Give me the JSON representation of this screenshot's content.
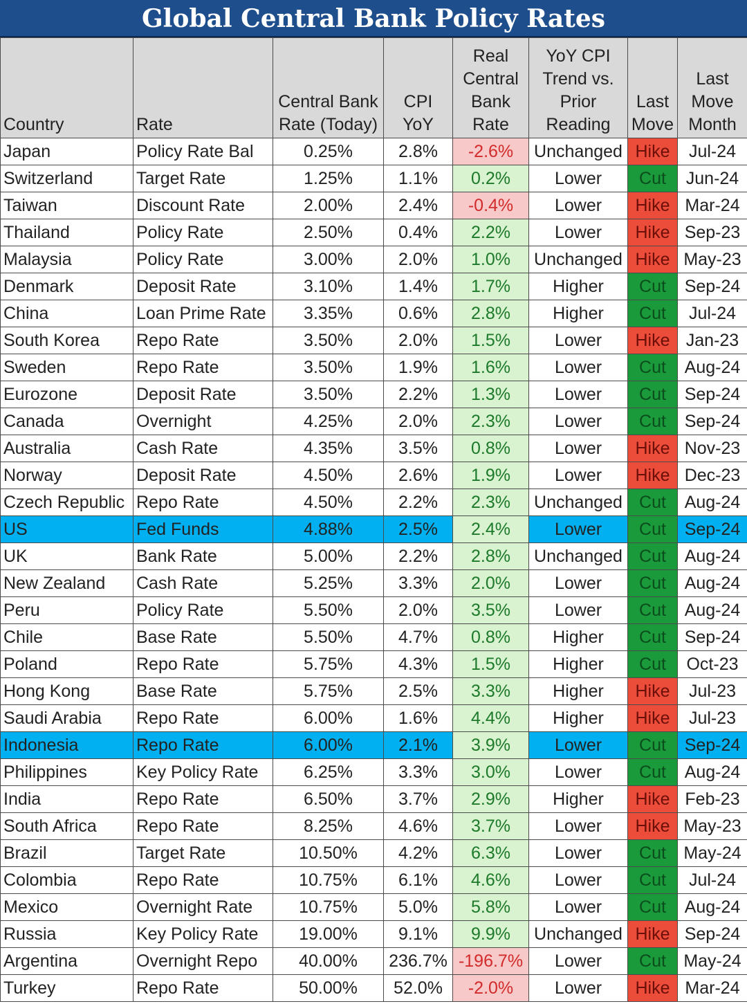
{
  "title": "Global Central Bank Policy Rates",
  "headers": {
    "country": "Country",
    "rate": "Rate",
    "cb_rate": "Central Bank Rate (Today)",
    "cpi": "CPI YoY",
    "real": "Real Central Bank Rate",
    "trend": "YoY CPI Trend vs. Prior Reading",
    "last_move": "Last Move",
    "last_move_month": "Last Move Month"
  },
  "colors": {
    "title_bg": "#1f4e8c",
    "header_bg": "#d9d9d9",
    "highlight_row": "#00b0f0",
    "positive_bg": "#d9f2d0",
    "positive_text": "#1c7a2a",
    "negative_bg": "#f8c9c9",
    "negative_text": "#d22b2b",
    "hike_bg": "#ec4d3a",
    "cut_bg": "#1a9a3a"
  },
  "rows": [
    {
      "country": "Japan",
      "rate": "Policy Rate Bal",
      "cb_rate": "0.25%",
      "cpi": "2.8%",
      "real": "-2.6%",
      "trend": "Unchanged",
      "last_move": "Hike",
      "month": "Jul-24",
      "highlight": false
    },
    {
      "country": "Switzerland",
      "rate": "Target Rate",
      "cb_rate": "1.25%",
      "cpi": "1.1%",
      "real": "0.2%",
      "trend": "Lower",
      "last_move": "Cut",
      "month": "Jun-24",
      "highlight": false
    },
    {
      "country": "Taiwan",
      "rate": "Discount Rate",
      "cb_rate": "2.00%",
      "cpi": "2.4%",
      "real": "-0.4%",
      "trend": "Lower",
      "last_move": "Hike",
      "month": "Mar-24",
      "highlight": false
    },
    {
      "country": "Thailand",
      "rate": "Policy Rate",
      "cb_rate": "2.50%",
      "cpi": "0.4%",
      "real": "2.2%",
      "trend": "Lower",
      "last_move": "Hike",
      "month": "Sep-23",
      "highlight": false
    },
    {
      "country": "Malaysia",
      "rate": "Policy Rate",
      "cb_rate": "3.00%",
      "cpi": "2.0%",
      "real": "1.0%",
      "trend": "Unchanged",
      "last_move": "Hike",
      "month": "May-23",
      "highlight": false
    },
    {
      "country": "Denmark",
      "rate": "Deposit Rate",
      "cb_rate": "3.10%",
      "cpi": "1.4%",
      "real": "1.7%",
      "trend": "Higher",
      "last_move": "Cut",
      "month": "Sep-24",
      "highlight": false
    },
    {
      "country": "China",
      "rate": "Loan Prime Rate",
      "cb_rate": "3.35%",
      "cpi": "0.6%",
      "real": "2.8%",
      "trend": "Higher",
      "last_move": "Cut",
      "month": "Jul-24",
      "highlight": false
    },
    {
      "country": "South Korea",
      "rate": "Repo Rate",
      "cb_rate": "3.50%",
      "cpi": "2.0%",
      "real": "1.5%",
      "trend": "Lower",
      "last_move": "Hike",
      "month": "Jan-23",
      "highlight": false
    },
    {
      "country": "Sweden",
      "rate": "Repo Rate",
      "cb_rate": "3.50%",
      "cpi": "1.9%",
      "real": "1.6%",
      "trend": "Lower",
      "last_move": "Cut",
      "month": "Aug-24",
      "highlight": false
    },
    {
      "country": "Eurozone",
      "rate": "Deposit Rate",
      "cb_rate": "3.50%",
      "cpi": "2.2%",
      "real": "1.3%",
      "trend": "Lower",
      "last_move": "Cut",
      "month": "Sep-24",
      "highlight": false
    },
    {
      "country": "Canada",
      "rate": "Overnight",
      "cb_rate": "4.25%",
      "cpi": "2.0%",
      "real": "2.3%",
      "trend": "Lower",
      "last_move": "Cut",
      "month": "Sep-24",
      "highlight": false
    },
    {
      "country": "Australia",
      "rate": "Cash Rate",
      "cb_rate": "4.35%",
      "cpi": "3.5%",
      "real": "0.8%",
      "trend": "Lower",
      "last_move": "Hike",
      "month": "Nov-23",
      "highlight": false
    },
    {
      "country": "Norway",
      "rate": "Deposit Rate",
      "cb_rate": "4.50%",
      "cpi": "2.6%",
      "real": "1.9%",
      "trend": "Lower",
      "last_move": "Hike",
      "month": "Dec-23",
      "highlight": false
    },
    {
      "country": "Czech Republic",
      "rate": "Repo Rate",
      "cb_rate": "4.50%",
      "cpi": "2.2%",
      "real": "2.3%",
      "trend": "Unchanged",
      "last_move": "Cut",
      "month": "Aug-24",
      "highlight": false
    },
    {
      "country": "US",
      "rate": "Fed Funds",
      "cb_rate": "4.88%",
      "cpi": "2.5%",
      "real": "2.4%",
      "trend": "Lower",
      "last_move": "Cut",
      "month": "Sep-24",
      "highlight": true
    },
    {
      "country": "UK",
      "rate": "Bank Rate",
      "cb_rate": "5.00%",
      "cpi": "2.2%",
      "real": "2.8%",
      "trend": "Unchanged",
      "last_move": "Cut",
      "month": "Aug-24",
      "highlight": false
    },
    {
      "country": "New Zealand",
      "rate": "Cash Rate",
      "cb_rate": "5.25%",
      "cpi": "3.3%",
      "real": "2.0%",
      "trend": "Lower",
      "last_move": "Cut",
      "month": "Aug-24",
      "highlight": false
    },
    {
      "country": "Peru",
      "rate": "Policy Rate",
      "cb_rate": "5.50%",
      "cpi": "2.0%",
      "real": "3.5%",
      "trend": "Lower",
      "last_move": "Cut",
      "month": "Aug-24",
      "highlight": false
    },
    {
      "country": "Chile",
      "rate": "Base Rate",
      "cb_rate": "5.50%",
      "cpi": "4.7%",
      "real": "0.8%",
      "trend": "Higher",
      "last_move": "Cut",
      "month": "Sep-24",
      "highlight": false
    },
    {
      "country": "Poland",
      "rate": "Repo Rate",
      "cb_rate": "5.75%",
      "cpi": "4.3%",
      "real": "1.5%",
      "trend": "Higher",
      "last_move": "Cut",
      "month": "Oct-23",
      "highlight": false
    },
    {
      "country": "Hong Kong",
      "rate": "Base Rate",
      "cb_rate": "5.75%",
      "cpi": "2.5%",
      "real": "3.3%",
      "trend": "Higher",
      "last_move": "Hike",
      "month": "Jul-23",
      "highlight": false
    },
    {
      "country": "Saudi Arabia",
      "rate": "Repo Rate",
      "cb_rate": "6.00%",
      "cpi": "1.6%",
      "real": "4.4%",
      "trend": "Higher",
      "last_move": "Hike",
      "month": "Jul-23",
      "highlight": false
    },
    {
      "country": "Indonesia",
      "rate": "Repo Rate",
      "cb_rate": "6.00%",
      "cpi": "2.1%",
      "real": "3.9%",
      "trend": "Lower",
      "last_move": "Cut",
      "month": "Sep-24",
      "highlight": true
    },
    {
      "country": "Philippines",
      "rate": "Key Policy Rate",
      "cb_rate": "6.25%",
      "cpi": "3.3%",
      "real": "3.0%",
      "trend": "Lower",
      "last_move": "Cut",
      "month": "Aug-24",
      "highlight": false
    },
    {
      "country": "India",
      "rate": "Repo Rate",
      "cb_rate": "6.50%",
      "cpi": "3.7%",
      "real": "2.9%",
      "trend": "Higher",
      "last_move": "Hike",
      "month": "Feb-23",
      "highlight": false
    },
    {
      "country": "South Africa",
      "rate": "Repo Rate",
      "cb_rate": "8.25%",
      "cpi": "4.6%",
      "real": "3.7%",
      "trend": "Lower",
      "last_move": "Hike",
      "month": "May-23",
      "highlight": false
    },
    {
      "country": "Brazil",
      "rate": "Target Rate",
      "cb_rate": "10.50%",
      "cpi": "4.2%",
      "real": "6.3%",
      "trend": "Lower",
      "last_move": "Cut",
      "month": "May-24",
      "highlight": false
    },
    {
      "country": "Colombia",
      "rate": "Repo Rate",
      "cb_rate": "10.75%",
      "cpi": "6.1%",
      "real": "4.6%",
      "trend": "Lower",
      "last_move": "Cut",
      "month": "Jul-24",
      "highlight": false
    },
    {
      "country": "Mexico",
      "rate": "Overnight Rate",
      "cb_rate": "10.75%",
      "cpi": "5.0%",
      "real": "5.8%",
      "trend": "Lower",
      "last_move": "Cut",
      "month": "Aug-24",
      "highlight": false
    },
    {
      "country": "Russia",
      "rate": "Key Policy Rate",
      "cb_rate": "19.00%",
      "cpi": "9.1%",
      "real": "9.9%",
      "trend": "Unchanged",
      "last_move": "Hike",
      "month": "Sep-24",
      "highlight": false
    },
    {
      "country": "Argentina",
      "rate": "Overnight Repo",
      "cb_rate": "40.00%",
      "cpi": "236.7%",
      "real": "-196.7%",
      "trend": "Lower",
      "last_move": "Cut",
      "month": "May-24",
      "highlight": false
    },
    {
      "country": "Turkey",
      "rate": "Repo Rate",
      "cb_rate": "50.00%",
      "cpi": "52.0%",
      "real": "-2.0%",
      "trend": "Lower",
      "last_move": "Hike",
      "month": "Mar-24",
      "highlight": false
    }
  ]
}
